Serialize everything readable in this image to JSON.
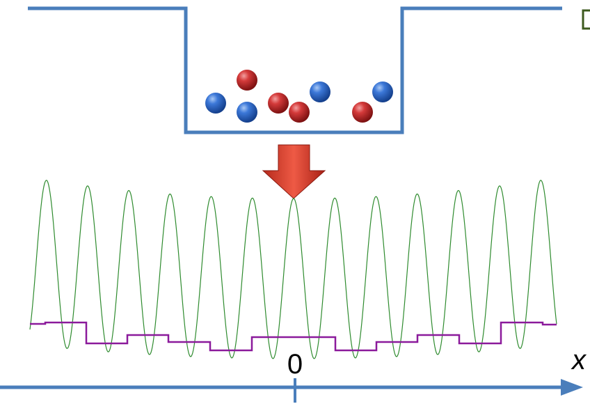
{
  "labels": {
    "origin": "0",
    "axis": "x"
  }
}
